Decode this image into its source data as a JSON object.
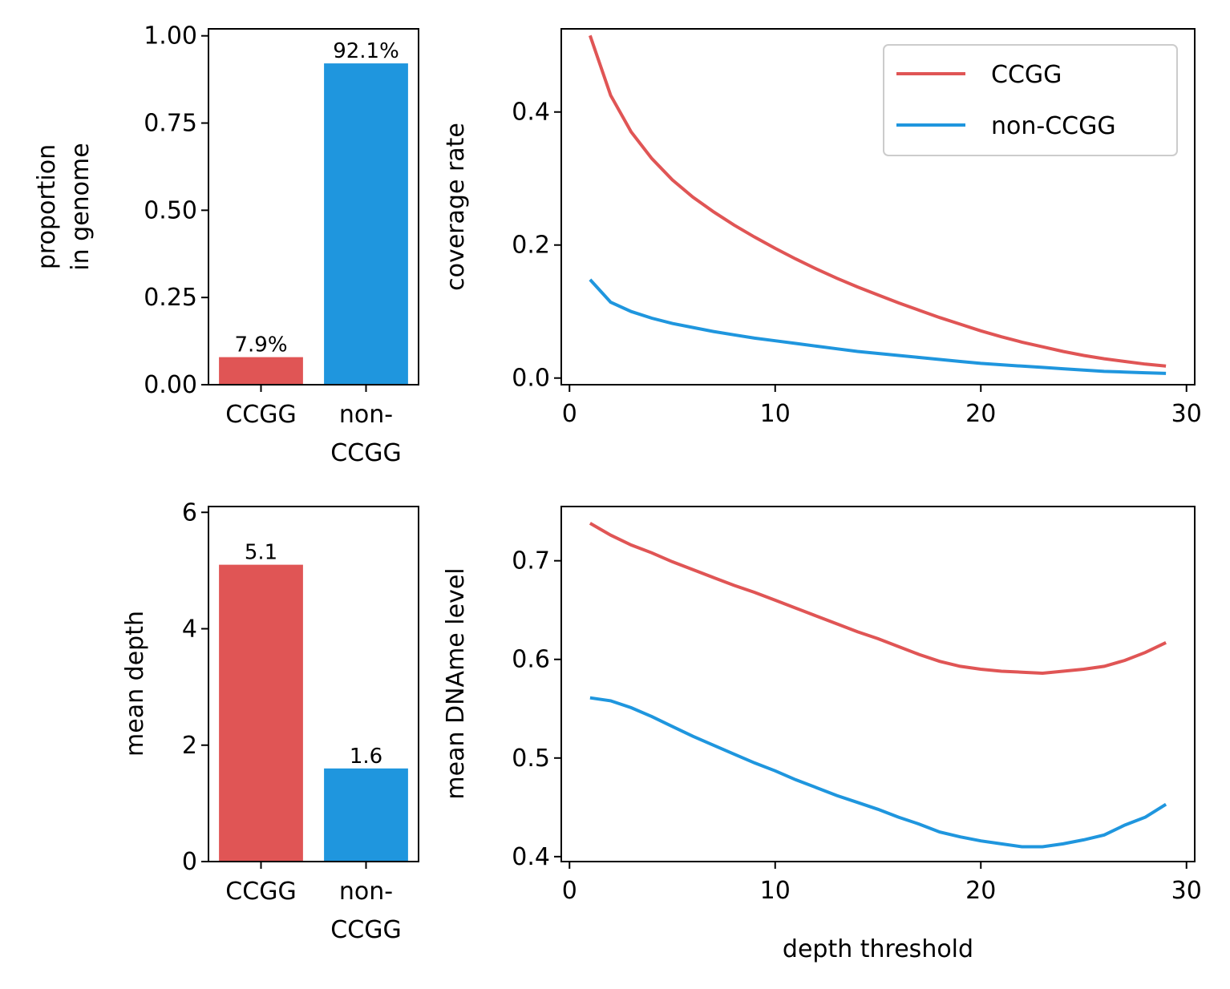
{
  "colors": {
    "ccgg": "#e05555",
    "non_ccgg": "#1f96de"
  },
  "chart_data": [
    {
      "id": "proportion",
      "type": "bar",
      "categories": [
        "CCGG",
        "non-\nCCGG"
      ],
      "values": [
        0.079,
        0.921
      ],
      "value_labels": [
        "7.9%",
        "92.1%"
      ],
      "ylabel_lines": [
        "proportion",
        "in genome"
      ],
      "ylim": [
        0,
        1.02
      ],
      "yticks": [
        0,
        0.25,
        0.5,
        0.75,
        1.0
      ],
      "ytick_labels": [
        "0.00",
        "0.25",
        "0.50",
        "0.75",
        "1.00"
      ]
    },
    {
      "id": "coverage",
      "type": "line",
      "ylabel": "coverage rate",
      "xlim": [
        -0.4,
        30.4
      ],
      "ylim": [
        -0.01,
        0.525
      ],
      "xticks": [
        0,
        10,
        20,
        30
      ],
      "yticks": [
        0.0,
        0.2,
        0.4
      ],
      "ytick_labels": [
        "0.0",
        "0.2",
        "0.4"
      ],
      "x": [
        1,
        2,
        3,
        4,
        5,
        6,
        7,
        8,
        9,
        10,
        11,
        12,
        13,
        14,
        15,
        16,
        17,
        18,
        19,
        20,
        21,
        22,
        23,
        24,
        25,
        26,
        27,
        28,
        29
      ],
      "legend": "top-right",
      "series": [
        {
          "name": "CCGG",
          "values": [
            0.515,
            0.425,
            0.37,
            0.33,
            0.298,
            0.272,
            0.25,
            0.23,
            0.212,
            0.195,
            0.179,
            0.164,
            0.15,
            0.137,
            0.125,
            0.113,
            0.102,
            0.091,
            0.081,
            0.071,
            0.062,
            0.054,
            0.047,
            0.04,
            0.034,
            0.029,
            0.025,
            0.021,
            0.018
          ]
        },
        {
          "name": "non-CCGG",
          "values": [
            0.148,
            0.114,
            0.1,
            0.09,
            0.082,
            0.076,
            0.07,
            0.065,
            0.06,
            0.056,
            0.052,
            0.048,
            0.044,
            0.04,
            0.037,
            0.034,
            0.031,
            0.028,
            0.025,
            0.022,
            0.02,
            0.018,
            0.016,
            0.014,
            0.012,
            0.01,
            0.009,
            0.008,
            0.007
          ]
        }
      ]
    },
    {
      "id": "depth",
      "type": "bar",
      "categories": [
        "CCGG",
        "non-\nCCGG"
      ],
      "values": [
        5.1,
        1.6
      ],
      "value_labels": [
        "5.1",
        "1.6"
      ],
      "ylabel": "mean depth",
      "ylim": [
        0,
        6.1
      ],
      "yticks": [
        0,
        2,
        4,
        6
      ],
      "ytick_labels": [
        "0",
        "2",
        "4",
        "6"
      ]
    },
    {
      "id": "dname",
      "type": "line",
      "ylabel": "mean DNAme level",
      "xlabel": "depth threshold",
      "xlim": [
        -0.4,
        30.4
      ],
      "ylim": [
        0.395,
        0.755
      ],
      "xticks": [
        0,
        10,
        20,
        30
      ],
      "yticks": [
        0.4,
        0.5,
        0.6,
        0.7
      ],
      "ytick_labels": [
        "0.4",
        "0.5",
        "0.6",
        "0.7"
      ],
      "x": [
        1,
        2,
        3,
        4,
        5,
        6,
        7,
        8,
        9,
        10,
        11,
        12,
        13,
        14,
        15,
        16,
        17,
        18,
        19,
        20,
        21,
        22,
        23,
        24,
        25,
        26,
        27,
        28,
        29
      ],
      "series": [
        {
          "name": "CCGG",
          "values": [
            0.738,
            0.726,
            0.716,
            0.708,
            0.699,
            0.691,
            0.683,
            0.675,
            0.668,
            0.66,
            0.652,
            0.644,
            0.636,
            0.628,
            0.621,
            0.613,
            0.605,
            0.598,
            0.593,
            0.59,
            0.588,
            0.587,
            0.586,
            0.588,
            0.59,
            0.593,
            0.599,
            0.607,
            0.617
          ]
        },
        {
          "name": "non-CCGG",
          "values": [
            0.561,
            0.558,
            0.551,
            0.542,
            0.532,
            0.522,
            0.513,
            0.504,
            0.495,
            0.487,
            0.478,
            0.47,
            0.462,
            0.455,
            0.448,
            0.44,
            0.433,
            0.425,
            0.42,
            0.416,
            0.413,
            0.41,
            0.41,
            0.413,
            0.417,
            0.422,
            0.432,
            0.44,
            0.453
          ]
        }
      ]
    }
  ]
}
